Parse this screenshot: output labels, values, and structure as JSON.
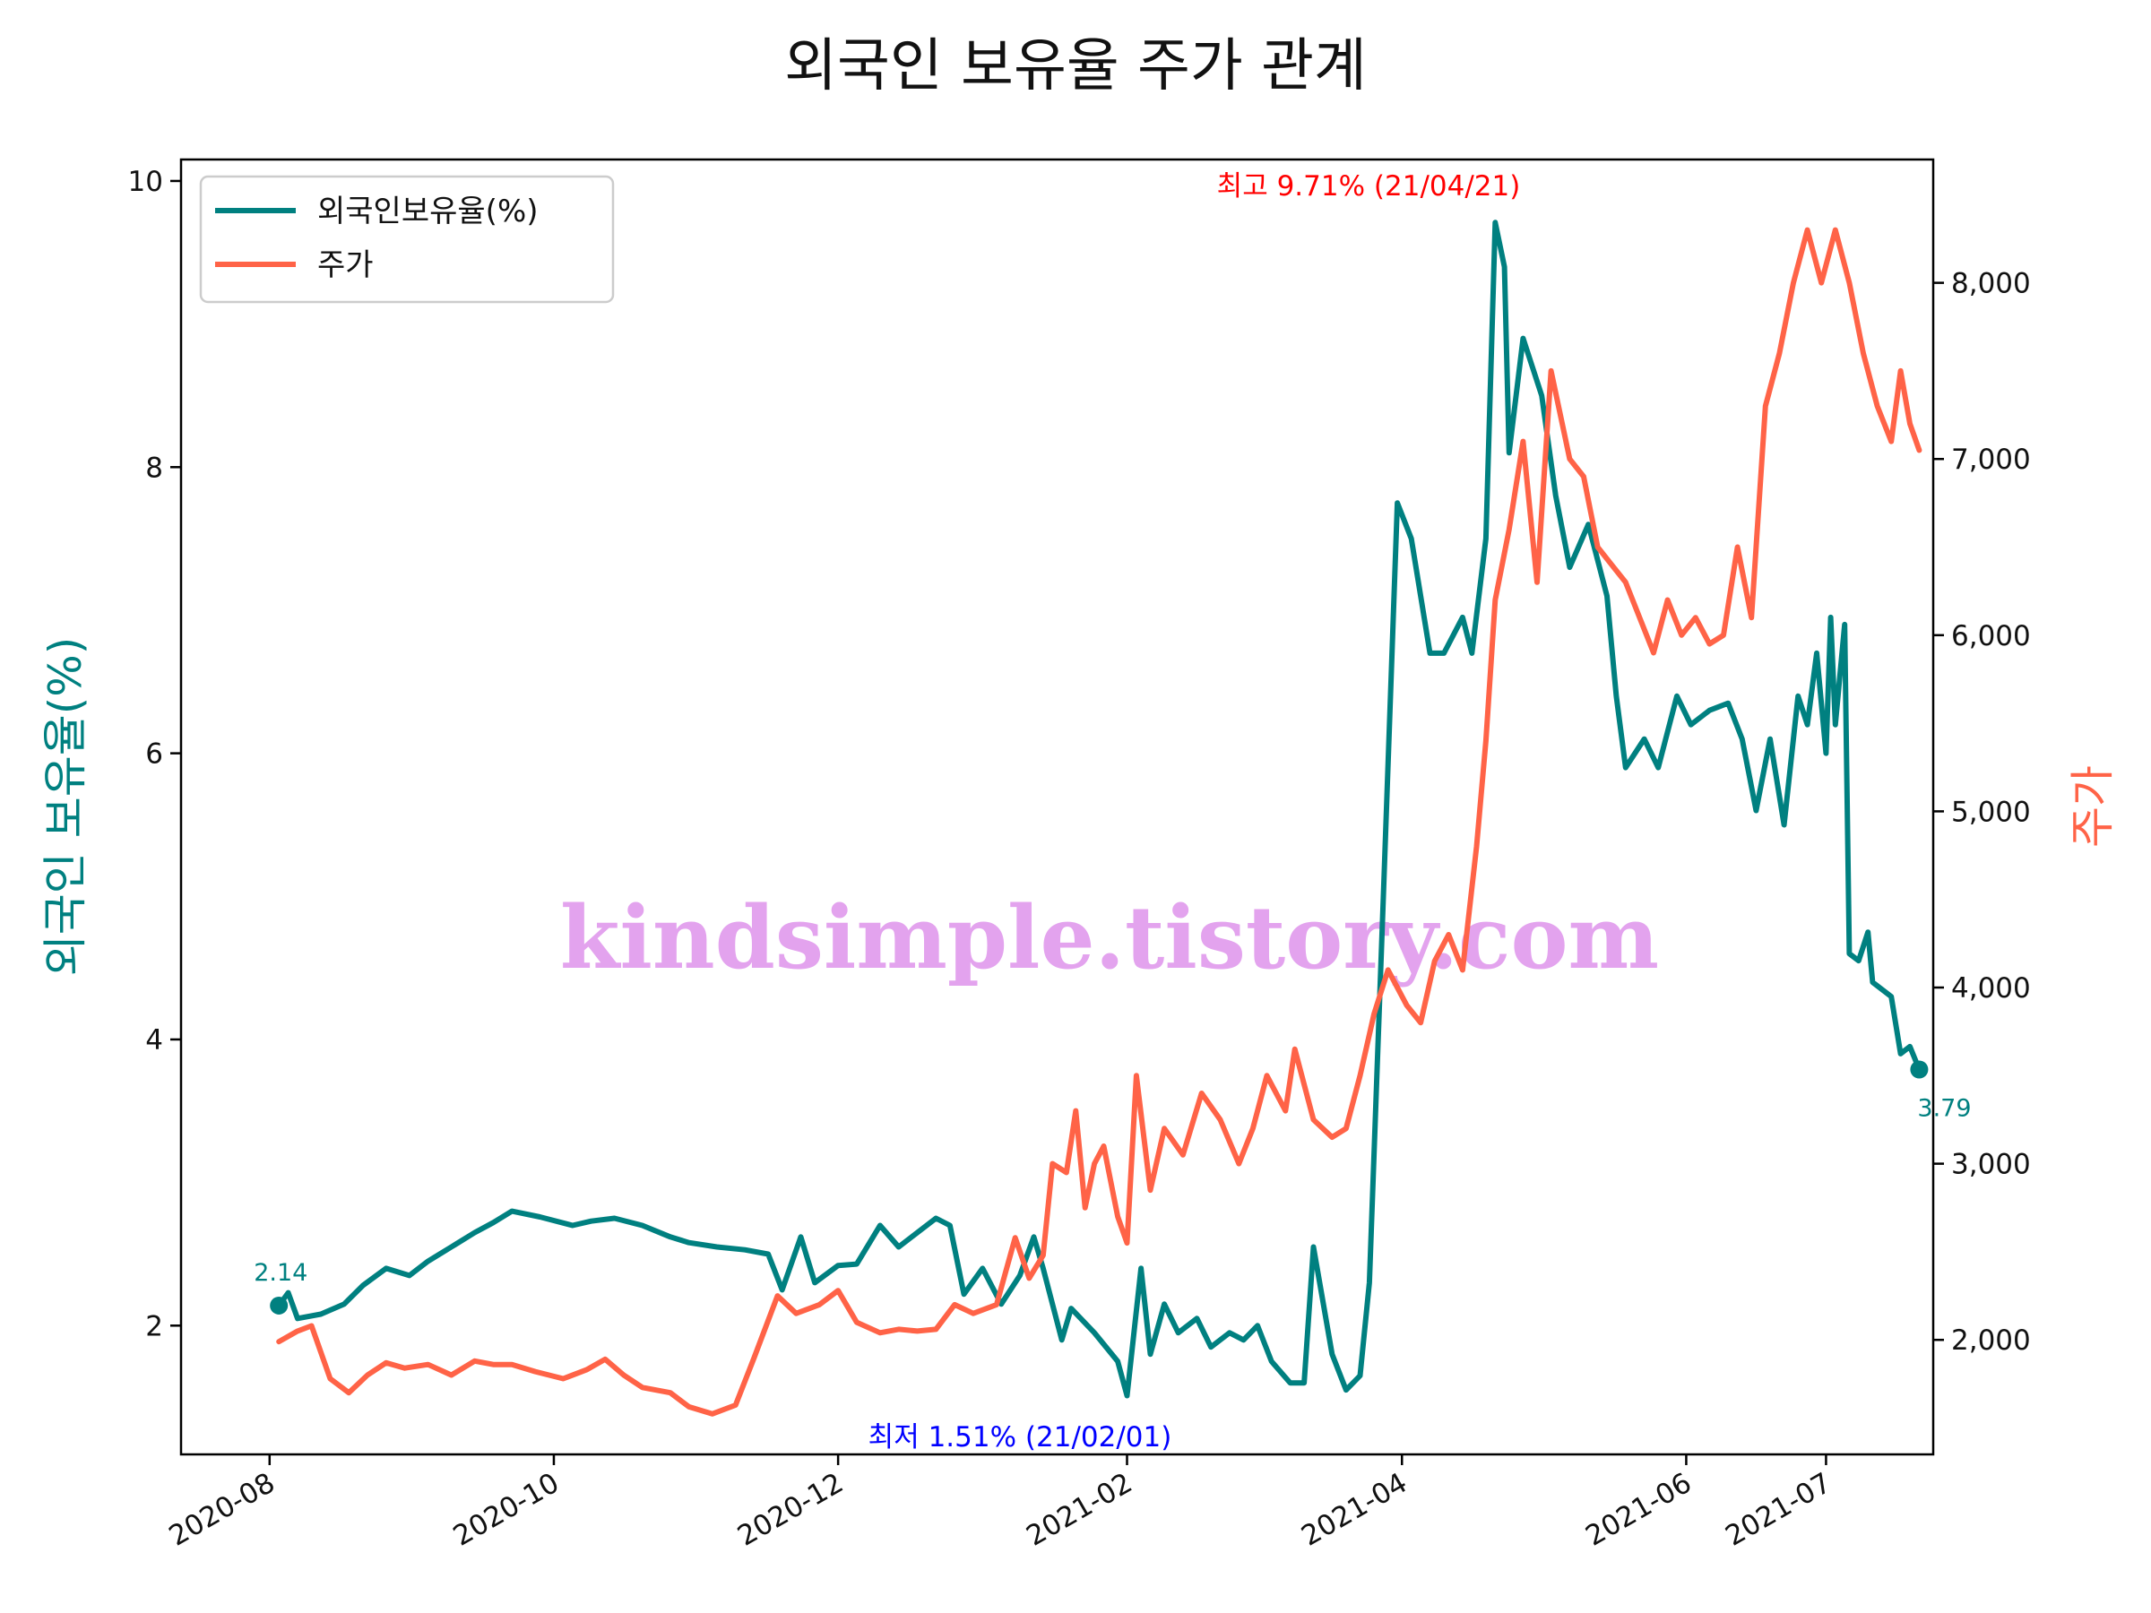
{
  "chart_data": {
    "type": "line",
    "title": "외국인 보유율 주가 관계",
    "watermark": "kindsimple.tistory.com",
    "x_ticks": [
      "2020-08",
      "2020-10",
      "2020-12",
      "2021-02",
      "2021-04",
      "2021-06",
      "2021-07"
    ],
    "x_range": [
      "2020-07-13",
      "2021-07-24"
    ],
    "y_left": {
      "label": "외국인 보유율(%)",
      "color": "#008080",
      "range": [
        1.1,
        10.15
      ],
      "ticks": [
        2,
        4,
        6,
        8,
        10
      ]
    },
    "y_right": {
      "label": "주가",
      "color": "#ff6347",
      "range": [
        1350,
        8700
      ],
      "ticks": [
        2000,
        3000,
        4000,
        5000,
        6000,
        7000,
        8000
      ],
      "tick_labels": [
        "2,000",
        "3,000",
        "4,000",
        "5,000",
        "6,000",
        "7,000",
        "8,000"
      ]
    },
    "legend": {
      "position": "top-left",
      "items": [
        "외국인보유율(%)",
        "주가"
      ]
    },
    "annotations": {
      "max_label": "최고 9.71% (21/04/21)",
      "min_label": "최저 1.51% (21/02/01)",
      "start_value": "2.14",
      "end_value": "3.79",
      "max_color": "#ff0000",
      "min_color": "#0000ff"
    },
    "series": [
      {
        "name": "외국인보유율(%)",
        "axis": "left",
        "color": "#008080",
        "points": [
          [
            "2020-08-03",
            2.14
          ],
          [
            "2020-08-05",
            2.23
          ],
          [
            "2020-08-07",
            2.05
          ],
          [
            "2020-08-12",
            2.08
          ],
          [
            "2020-08-17",
            2.15
          ],
          [
            "2020-08-21",
            2.28
          ],
          [
            "2020-08-26",
            2.4
          ],
          [
            "2020-08-31",
            2.35
          ],
          [
            "2020-09-04",
            2.45
          ],
          [
            "2020-09-09",
            2.55
          ],
          [
            "2020-09-14",
            2.65
          ],
          [
            "2020-09-18",
            2.72
          ],
          [
            "2020-09-22",
            2.8
          ],
          [
            "2020-09-28",
            2.76
          ],
          [
            "2020-10-05",
            2.7
          ],
          [
            "2020-10-09",
            2.73
          ],
          [
            "2020-10-14",
            2.75
          ],
          [
            "2020-10-20",
            2.7
          ],
          [
            "2020-10-26",
            2.62
          ],
          [
            "2020-10-30",
            2.58
          ],
          [
            "2020-11-05",
            2.55
          ],
          [
            "2020-11-11",
            2.53
          ],
          [
            "2020-11-16",
            2.5
          ],
          [
            "2020-11-19",
            2.25
          ],
          [
            "2020-11-23",
            2.62
          ],
          [
            "2020-11-26",
            2.3
          ],
          [
            "2020-12-01",
            2.42
          ],
          [
            "2020-12-05",
            2.43
          ],
          [
            "2020-12-10",
            2.7
          ],
          [
            "2020-12-14",
            2.55
          ],
          [
            "2020-12-18",
            2.65
          ],
          [
            "2020-12-22",
            2.75
          ],
          [
            "2020-12-25",
            2.7
          ],
          [
            "2020-12-28",
            2.22
          ],
          [
            "2021-01-01",
            2.4
          ],
          [
            "2021-01-05",
            2.15
          ],
          [
            "2021-01-09",
            2.35
          ],
          [
            "2021-01-12",
            2.62
          ],
          [
            "2021-01-14",
            2.4
          ],
          [
            "2021-01-18",
            1.9
          ],
          [
            "2021-01-20",
            2.12
          ],
          [
            "2021-01-25",
            1.95
          ],
          [
            "2021-01-30",
            1.75
          ],
          [
            "2021-02-01",
            1.51
          ],
          [
            "2021-02-04",
            2.4
          ],
          [
            "2021-02-06",
            1.8
          ],
          [
            "2021-02-09",
            2.15
          ],
          [
            "2021-02-12",
            1.95
          ],
          [
            "2021-02-16",
            2.05
          ],
          [
            "2021-02-19",
            1.85
          ],
          [
            "2021-02-23",
            1.95
          ],
          [
            "2021-02-26",
            1.9
          ],
          [
            "2021-03-01",
            2.0
          ],
          [
            "2021-03-04",
            1.75
          ],
          [
            "2021-03-08",
            1.6
          ],
          [
            "2021-03-11",
            1.6
          ],
          [
            "2021-03-13",
            2.55
          ],
          [
            "2021-03-17",
            1.8
          ],
          [
            "2021-03-20",
            1.55
          ],
          [
            "2021-03-23",
            1.65
          ],
          [
            "2021-03-25",
            2.3
          ],
          [
            "2021-03-28",
            5.0
          ],
          [
            "2021-03-31",
            7.75
          ],
          [
            "2021-04-03",
            7.5
          ],
          [
            "2021-04-07",
            6.7
          ],
          [
            "2021-04-10",
            6.7
          ],
          [
            "2021-04-14",
            6.95
          ],
          [
            "2021-04-16",
            6.7
          ],
          [
            "2021-04-19",
            7.5
          ],
          [
            "2021-04-21",
            9.71
          ],
          [
            "2021-04-23",
            9.4
          ],
          [
            "2021-04-24",
            8.1
          ],
          [
            "2021-04-27",
            8.9
          ],
          [
            "2021-05-01",
            8.5
          ],
          [
            "2021-05-04",
            7.8
          ],
          [
            "2021-05-07",
            7.3
          ],
          [
            "2021-05-11",
            7.6
          ],
          [
            "2021-05-15",
            7.1
          ],
          [
            "2021-05-17",
            6.4
          ],
          [
            "2021-05-19",
            5.9
          ],
          [
            "2021-05-23",
            6.1
          ],
          [
            "2021-05-26",
            5.9
          ],
          [
            "2021-05-30",
            6.4
          ],
          [
            "2021-06-02",
            6.2
          ],
          [
            "2021-06-06",
            6.3
          ],
          [
            "2021-06-10",
            6.35
          ],
          [
            "2021-06-13",
            6.1
          ],
          [
            "2021-06-16",
            5.6
          ],
          [
            "2021-06-19",
            6.1
          ],
          [
            "2021-06-22",
            5.5
          ],
          [
            "2021-06-25",
            6.4
          ],
          [
            "2021-06-27",
            6.2
          ],
          [
            "2021-06-29",
            6.7
          ],
          [
            "2021-07-01",
            6.0
          ],
          [
            "2021-07-02",
            6.95
          ],
          [
            "2021-07-03",
            6.2
          ],
          [
            "2021-07-05",
            6.9
          ],
          [
            "2021-07-06",
            4.6
          ],
          [
            "2021-07-08",
            4.55
          ],
          [
            "2021-07-10",
            4.75
          ],
          [
            "2021-07-11",
            4.4
          ],
          [
            "2021-07-13",
            4.35
          ],
          [
            "2021-07-15",
            4.3
          ],
          [
            "2021-07-17",
            3.9
          ],
          [
            "2021-07-19",
            3.95
          ],
          [
            "2021-07-21",
            3.79
          ]
        ]
      },
      {
        "name": "주가",
        "axis": "right",
        "color": "#ff6347",
        "points": [
          [
            "2020-08-03",
            1990
          ],
          [
            "2020-08-07",
            2050
          ],
          [
            "2020-08-10",
            2080
          ],
          [
            "2020-08-14",
            1780
          ],
          [
            "2020-08-18",
            1700
          ],
          [
            "2020-08-22",
            1800
          ],
          [
            "2020-08-26",
            1870
          ],
          [
            "2020-08-30",
            1840
          ],
          [
            "2020-09-04",
            1860
          ],
          [
            "2020-09-09",
            1800
          ],
          [
            "2020-09-14",
            1880
          ],
          [
            "2020-09-18",
            1860
          ],
          [
            "2020-09-22",
            1860
          ],
          [
            "2020-09-27",
            1820
          ],
          [
            "2020-10-03",
            1780
          ],
          [
            "2020-10-08",
            1830
          ],
          [
            "2020-10-12",
            1890
          ],
          [
            "2020-10-16",
            1800
          ],
          [
            "2020-10-20",
            1730
          ],
          [
            "2020-10-26",
            1700
          ],
          [
            "2020-10-30",
            1620
          ],
          [
            "2020-11-04",
            1580
          ],
          [
            "2020-11-09",
            1630
          ],
          [
            "2020-11-13",
            1900
          ],
          [
            "2020-11-18",
            2250
          ],
          [
            "2020-11-22",
            2150
          ],
          [
            "2020-11-27",
            2200
          ],
          [
            "2020-12-01",
            2280
          ],
          [
            "2020-12-05",
            2100
          ],
          [
            "2020-12-10",
            2040
          ],
          [
            "2020-12-14",
            2060
          ],
          [
            "2020-12-18",
            2050
          ],
          [
            "2020-12-22",
            2060
          ],
          [
            "2020-12-26",
            2200
          ],
          [
            "2020-12-30",
            2150
          ],
          [
            "2021-01-04",
            2200
          ],
          [
            "2021-01-08",
            2580
          ],
          [
            "2021-01-11",
            2350
          ],
          [
            "2021-01-14",
            2480
          ],
          [
            "2021-01-16",
            3000
          ],
          [
            "2021-01-19",
            2950
          ],
          [
            "2021-01-21",
            3300
          ],
          [
            "2021-01-23",
            2750
          ],
          [
            "2021-01-25",
            3000
          ],
          [
            "2021-01-27",
            3100
          ],
          [
            "2021-01-30",
            2700
          ],
          [
            "2021-02-01",
            2550
          ],
          [
            "2021-02-03",
            3500
          ],
          [
            "2021-02-06",
            2850
          ],
          [
            "2021-02-09",
            3200
          ],
          [
            "2021-02-13",
            3050
          ],
          [
            "2021-02-17",
            3400
          ],
          [
            "2021-02-21",
            3250
          ],
          [
            "2021-02-25",
            3000
          ],
          [
            "2021-02-28",
            3200
          ],
          [
            "2021-03-03",
            3500
          ],
          [
            "2021-03-07",
            3300
          ],
          [
            "2021-03-09",
            3650
          ],
          [
            "2021-03-13",
            3250
          ],
          [
            "2021-03-17",
            3150
          ],
          [
            "2021-03-20",
            3200
          ],
          [
            "2021-03-23",
            3500
          ],
          [
            "2021-03-26",
            3850
          ],
          [
            "2021-03-29",
            4100
          ],
          [
            "2021-04-02",
            3900
          ],
          [
            "2021-04-05",
            3800
          ],
          [
            "2021-04-08",
            4150
          ],
          [
            "2021-04-11",
            4300
          ],
          [
            "2021-04-14",
            4100
          ],
          [
            "2021-04-17",
            4800
          ],
          [
            "2021-04-19",
            5400
          ],
          [
            "2021-04-21",
            6200
          ],
          [
            "2021-04-24",
            6600
          ],
          [
            "2021-04-27",
            7100
          ],
          [
            "2021-04-30",
            6300
          ],
          [
            "2021-05-03",
            7500
          ],
          [
            "2021-05-07",
            7000
          ],
          [
            "2021-05-10",
            6900
          ],
          [
            "2021-05-13",
            6500
          ],
          [
            "2021-05-16",
            6400
          ],
          [
            "2021-05-19",
            6300
          ],
          [
            "2021-05-22",
            6100
          ],
          [
            "2021-05-25",
            5900
          ],
          [
            "2021-05-28",
            6200
          ],
          [
            "2021-05-31",
            6000
          ],
          [
            "2021-06-03",
            6100
          ],
          [
            "2021-06-06",
            5950
          ],
          [
            "2021-06-09",
            6000
          ],
          [
            "2021-06-12",
            6500
          ],
          [
            "2021-06-15",
            6100
          ],
          [
            "2021-06-18",
            7300
          ],
          [
            "2021-06-21",
            7600
          ],
          [
            "2021-06-24",
            8000
          ],
          [
            "2021-06-27",
            8300
          ],
          [
            "2021-06-30",
            8000
          ],
          [
            "2021-07-03",
            8300
          ],
          [
            "2021-07-06",
            8000
          ],
          [
            "2021-07-09",
            7600
          ],
          [
            "2021-07-12",
            7300
          ],
          [
            "2021-07-15",
            7100
          ],
          [
            "2021-07-17",
            7500
          ],
          [
            "2021-07-19",
            7200
          ],
          [
            "2021-07-21",
            7050
          ]
        ]
      }
    ]
  }
}
